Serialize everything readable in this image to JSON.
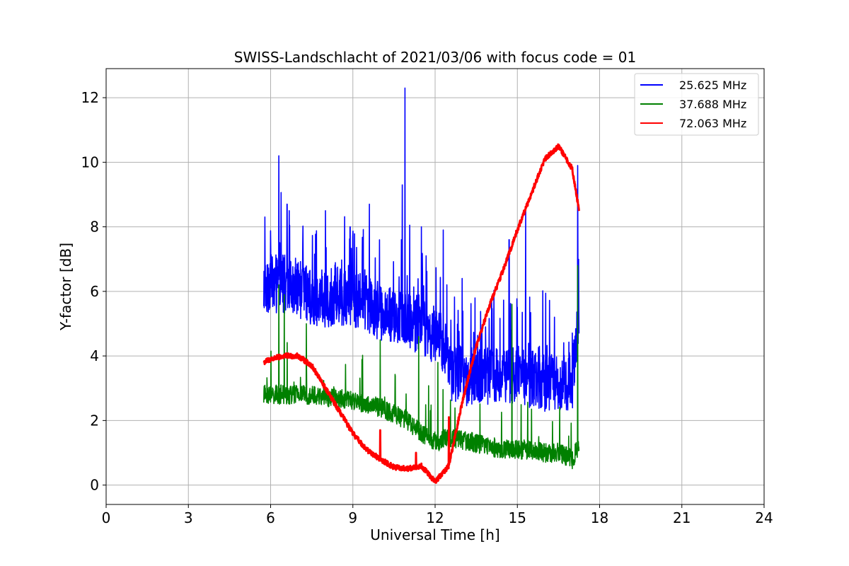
{
  "chart_data": {
    "type": "line",
    "title": "SWISS-Landschlacht of 2021/03/06 with focus code = 01",
    "xlabel": "Universal Time [h]",
    "ylabel": "Y-factor [dB]",
    "xlim": [
      0,
      24
    ],
    "ylim": [
      -0.6,
      12.9
    ],
    "xticks": [
      0,
      3,
      6,
      9,
      12,
      15,
      18,
      21,
      24
    ],
    "xtick_labels": [
      "0",
      "3",
      "6",
      "9",
      "12",
      "15",
      "18",
      "21",
      "24"
    ],
    "yticks": [
      0,
      2,
      4,
      6,
      8,
      10,
      12
    ],
    "ytick_labels": [
      "0",
      "2",
      "4",
      "6",
      "8",
      "10",
      "12"
    ],
    "grid": true,
    "legend_position": "top-right",
    "series": [
      {
        "name": "25.625 MHz",
        "color": "#0000ff",
        "noise": 0.9,
        "spikes": [
          [
            6.3,
            10.2
          ],
          [
            6.6,
            8.7
          ],
          [
            8.0,
            8.5
          ],
          [
            8.9,
            8.0
          ],
          [
            9.6,
            8.7
          ],
          [
            10.8,
            9.3
          ],
          [
            10.9,
            12.3
          ],
          [
            11.5,
            8.0
          ],
          [
            12.3,
            7.9
          ],
          [
            14.7,
            7.6
          ],
          [
            15.3,
            8.5
          ],
          [
            17.2,
            9.9
          ]
        ],
        "x": [
          5.75,
          6.0,
          6.5,
          7.0,
          7.5,
          8.0,
          8.5,
          9.0,
          9.5,
          10.0,
          10.5,
          11.0,
          11.5,
          12.0,
          12.4,
          12.6,
          13.0,
          13.5,
          14.0,
          14.5,
          15.0,
          15.5,
          16.0,
          16.5,
          17.0,
          17.25
        ],
        "y": [
          5.8,
          6.0,
          5.9,
          5.8,
          5.6,
          5.5,
          5.6,
          5.5,
          5.3,
          5.1,
          5.0,
          4.9,
          4.6,
          4.4,
          4.0,
          3.2,
          3.1,
          3.0,
          3.1,
          3.0,
          3.2,
          3.0,
          2.9,
          2.9,
          2.9,
          5.0
        ]
      },
      {
        "name": "37.688 MHz",
        "color": "#008000",
        "noise": 0.3,
        "spikes": [
          [
            6.3,
            6.2
          ],
          [
            6.5,
            5.9
          ],
          [
            7.3,
            5.0
          ],
          [
            10.0,
            4.5
          ],
          [
            11.4,
            4.6
          ],
          [
            12.1,
            3.8
          ],
          [
            14.8,
            5.6
          ],
          [
            17.2,
            6.8
          ]
        ],
        "x": [
          5.75,
          6.0,
          6.5,
          7.0,
          7.5,
          8.0,
          8.5,
          9.0,
          9.5,
          10.0,
          10.5,
          11.0,
          11.5,
          12.0,
          12.5,
          13.0,
          13.5,
          14.0,
          14.5,
          15.0,
          15.5,
          16.0,
          16.5,
          17.0,
          17.25
        ],
        "y": [
          2.8,
          2.8,
          2.8,
          2.8,
          2.8,
          2.7,
          2.7,
          2.6,
          2.5,
          2.4,
          2.2,
          2.0,
          1.6,
          1.3,
          1.5,
          1.4,
          1.3,
          1.2,
          1.1,
          1.1,
          1.1,
          1.0,
          1.0,
          0.8,
          1.2
        ]
      },
      {
        "name": "72.063 MHz",
        "color": "#ff0000",
        "noise": 0.08,
        "spikes": [
          [
            10.0,
            1.7
          ],
          [
            11.3,
            1.0
          ],
          [
            12.5,
            2.1
          ]
        ],
        "x": [
          5.75,
          6.0,
          6.5,
          7.0,
          7.5,
          8.0,
          8.5,
          9.0,
          9.5,
          10.0,
          10.5,
          11.0,
          11.5,
          12.0,
          12.5,
          13.0,
          13.5,
          14.0,
          14.5,
          15.0,
          15.5,
          16.0,
          16.5,
          17.0,
          17.25
        ],
        "y": [
          3.8,
          3.9,
          4.0,
          4.0,
          3.7,
          3.0,
          2.3,
          1.6,
          1.1,
          0.8,
          0.55,
          0.5,
          0.6,
          0.1,
          0.6,
          2.6,
          4.3,
          5.6,
          6.7,
          7.9,
          9.0,
          10.1,
          10.5,
          9.8,
          8.5
        ]
      }
    ]
  }
}
